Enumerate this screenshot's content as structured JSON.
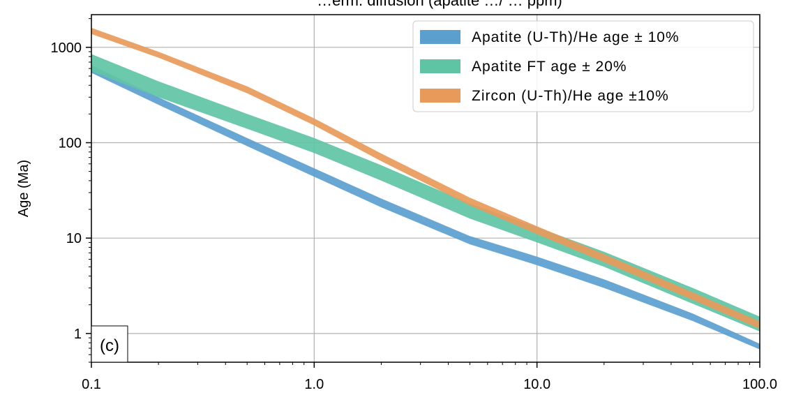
{
  "chart_data": {
    "type": "area",
    "title": "…erm. diffusion (apatite …/ … ppm)",
    "xlabel": "",
    "ylabel": "Age (Ma)",
    "xscale": "log",
    "yscale": "log",
    "xlim": [
      0.1,
      100
    ],
    "ylim": [
      0.5,
      2200
    ],
    "xticks": [
      0.1,
      1,
      10,
      100
    ],
    "xtick_labels": [
      "0.1",
      "1.0",
      "10.0",
      "100.0"
    ],
    "yticks": [
      1,
      10,
      100,
      1000
    ],
    "ytick_labels": [
      "1",
      "10",
      "100",
      "1000"
    ],
    "grid": true,
    "legend_position": "top-right",
    "panel_label": "(c)",
    "x": [
      0.1,
      0.2,
      0.5,
      1,
      2,
      5,
      10,
      20,
      50,
      100
    ],
    "series": [
      {
        "name": "Apatite (U-Th)/He age ± 10%",
        "color": "#5b9fcf",
        "lower": [
          540,
          250,
          92,
          44,
          21,
          8.6,
          5.2,
          3.0,
          1.35,
          0.68
        ],
        "upper": [
          650,
          300,
          112,
          54,
          26,
          10.5,
          6.4,
          3.7,
          1.62,
          0.78
        ]
      },
      {
        "name": "Apatite FT age ± 20%",
        "color": "#5fc4a4",
        "lower": [
          560,
          300,
          140,
          78,
          40,
          16,
          9.0,
          5.0,
          2.05,
          1.05
        ],
        "upper": [
          850,
          440,
          200,
          112,
          58,
          23,
          13.0,
          7.2,
          3.0,
          1.5
        ]
      },
      {
        "name": "Zircon (U-Th)/He age ±10%",
        "color": "#e89a5a",
        "lower": [
          1380,
          780,
          330,
          152,
          64,
          22,
          11.0,
          5.6,
          2.25,
          1.12
        ],
        "upper": [
          1600,
          900,
          390,
          180,
          77,
          26.5,
          13.3,
          6.8,
          2.7,
          1.34
        ]
      }
    ]
  }
}
